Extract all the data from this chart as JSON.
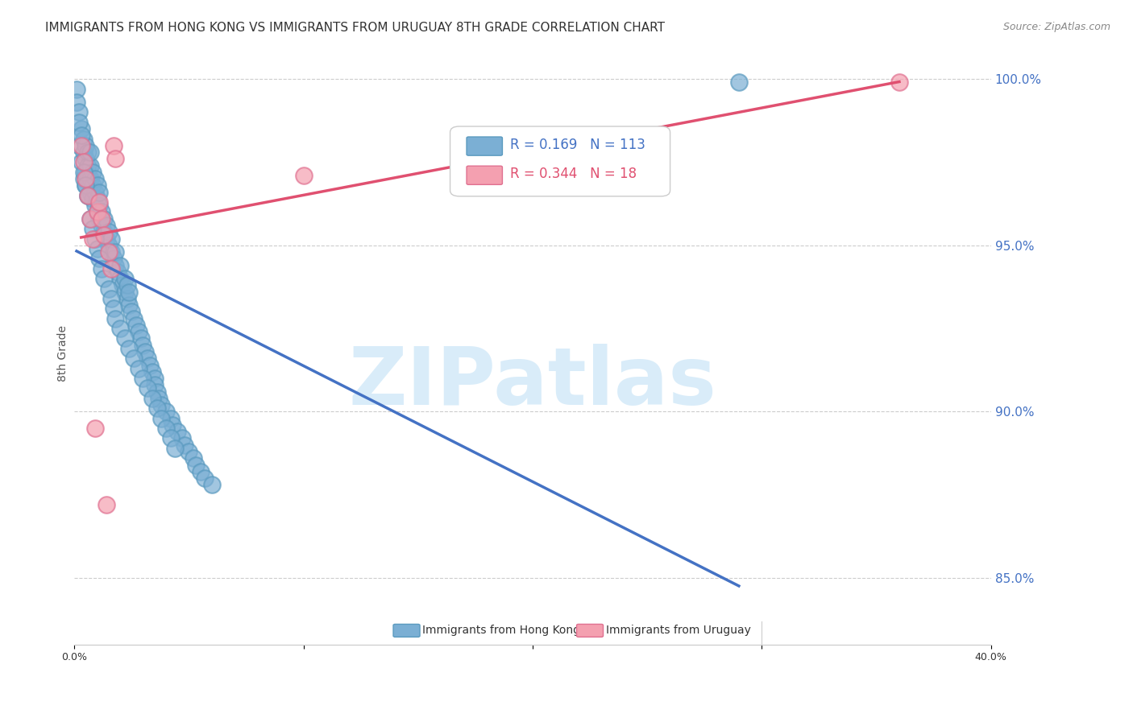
{
  "title": "IMMIGRANTS FROM HONG KONG VS IMMIGRANTS FROM URUGUAY 8TH GRADE CORRELATION CHART",
  "source": "Source: ZipAtlas.com",
  "xlabel": "",
  "ylabel": "8th Grade",
  "right_yticks": [
    85.0,
    90.0,
    95.0,
    100.0
  ],
  "right_ytick_labels": [
    "85.0%",
    "90.0%",
    "95.0%",
    "100.0%"
  ],
  "xlim": [
    0.0,
    0.4
  ],
  "ylim": [
    0.83,
    1.005
  ],
  "xtick_vals": [
    0.0,
    0.1,
    0.2,
    0.3,
    0.4
  ],
  "xtick_labels": [
    "0.0%",
    "",
    "",
    "",
    "40.0%"
  ],
  "series1_name": "Immigrants from Hong Kong",
  "series1_R": 0.169,
  "series1_N": 113,
  "series1_color": "#7bafd4",
  "series1_edge": "#5a9abf",
  "series2_name": "Immigrants from Uruguay",
  "series2_R": 0.344,
  "series2_N": 18,
  "series2_color": "#f4a0b0",
  "series2_edge": "#e07090",
  "trend1_color": "#4472c4",
  "trend2_color": "#e05070",
  "legend_R1_color": "#4472c4",
  "legend_R2_color": "#e05070",
  "legend_N1_color": "#4472c4",
  "legend_N2_color": "#e05070",
  "watermark": "ZIPatlas",
  "watermark_color": "#d0e8f8",
  "background_color": "#ffffff",
  "grid_color": "#cccccc",
  "title_fontsize": 11,
  "axis_label_fontsize": 10,
  "tick_fontsize": 9,
  "source_fontsize": 9,
  "hk_x": [
    0.002,
    0.003,
    0.003,
    0.004,
    0.004,
    0.004,
    0.005,
    0.005,
    0.005,
    0.005,
    0.006,
    0.006,
    0.006,
    0.006,
    0.007,
    0.007,
    0.007,
    0.007,
    0.008,
    0.008,
    0.008,
    0.009,
    0.009,
    0.009,
    0.01,
    0.01,
    0.01,
    0.011,
    0.011,
    0.011,
    0.012,
    0.012,
    0.013,
    0.013,
    0.014,
    0.014,
    0.015,
    0.015,
    0.016,
    0.016,
    0.017,
    0.018,
    0.018,
    0.019,
    0.02,
    0.02,
    0.021,
    0.022,
    0.022,
    0.023,
    0.023,
    0.024,
    0.024,
    0.025,
    0.026,
    0.027,
    0.028,
    0.029,
    0.03,
    0.031,
    0.032,
    0.033,
    0.034,
    0.035,
    0.035,
    0.036,
    0.037,
    0.038,
    0.04,
    0.042,
    0.043,
    0.045,
    0.047,
    0.048,
    0.05,
    0.052,
    0.053,
    0.055,
    0.057,
    0.06,
    0.001,
    0.001,
    0.002,
    0.002,
    0.003,
    0.004,
    0.005,
    0.006,
    0.007,
    0.008,
    0.009,
    0.01,
    0.011,
    0.012,
    0.013,
    0.015,
    0.016,
    0.017,
    0.018,
    0.02,
    0.022,
    0.024,
    0.026,
    0.028,
    0.03,
    0.032,
    0.034,
    0.036,
    0.038,
    0.04,
    0.042,
    0.044,
    0.29
  ],
  "hk_y": [
    0.98,
    0.975,
    0.985,
    0.978,
    0.97,
    0.982,
    0.972,
    0.968,
    0.976,
    0.98,
    0.965,
    0.97,
    0.974,
    0.978,
    0.966,
    0.97,
    0.974,
    0.978,
    0.964,
    0.968,
    0.972,
    0.962,
    0.966,
    0.97,
    0.96,
    0.964,
    0.968,
    0.958,
    0.962,
    0.966,
    0.956,
    0.96,
    0.954,
    0.958,
    0.952,
    0.956,
    0.95,
    0.954,
    0.948,
    0.952,
    0.946,
    0.944,
    0.948,
    0.942,
    0.94,
    0.944,
    0.938,
    0.936,
    0.94,
    0.934,
    0.938,
    0.932,
    0.936,
    0.93,
    0.928,
    0.926,
    0.924,
    0.922,
    0.92,
    0.918,
    0.916,
    0.914,
    0.912,
    0.91,
    0.908,
    0.906,
    0.904,
    0.902,
    0.9,
    0.898,
    0.896,
    0.894,
    0.892,
    0.89,
    0.888,
    0.886,
    0.884,
    0.882,
    0.88,
    0.878,
    0.997,
    0.993,
    0.99,
    0.987,
    0.983,
    0.972,
    0.968,
    0.965,
    0.958,
    0.955,
    0.952,
    0.949,
    0.946,
    0.943,
    0.94,
    0.937,
    0.934,
    0.931,
    0.928,
    0.925,
    0.922,
    0.919,
    0.916,
    0.913,
    0.91,
    0.907,
    0.904,
    0.901,
    0.898,
    0.895,
    0.892,
    0.889,
    0.999
  ],
  "uy_x": [
    0.003,
    0.004,
    0.005,
    0.006,
    0.007,
    0.008,
    0.009,
    0.01,
    0.011,
    0.012,
    0.013,
    0.014,
    0.015,
    0.016,
    0.017,
    0.018,
    0.1,
    0.36
  ],
  "uy_y": [
    0.98,
    0.975,
    0.97,
    0.965,
    0.958,
    0.952,
    0.895,
    0.96,
    0.963,
    0.958,
    0.953,
    0.872,
    0.948,
    0.943,
    0.98,
    0.976,
    0.971,
    0.999
  ]
}
